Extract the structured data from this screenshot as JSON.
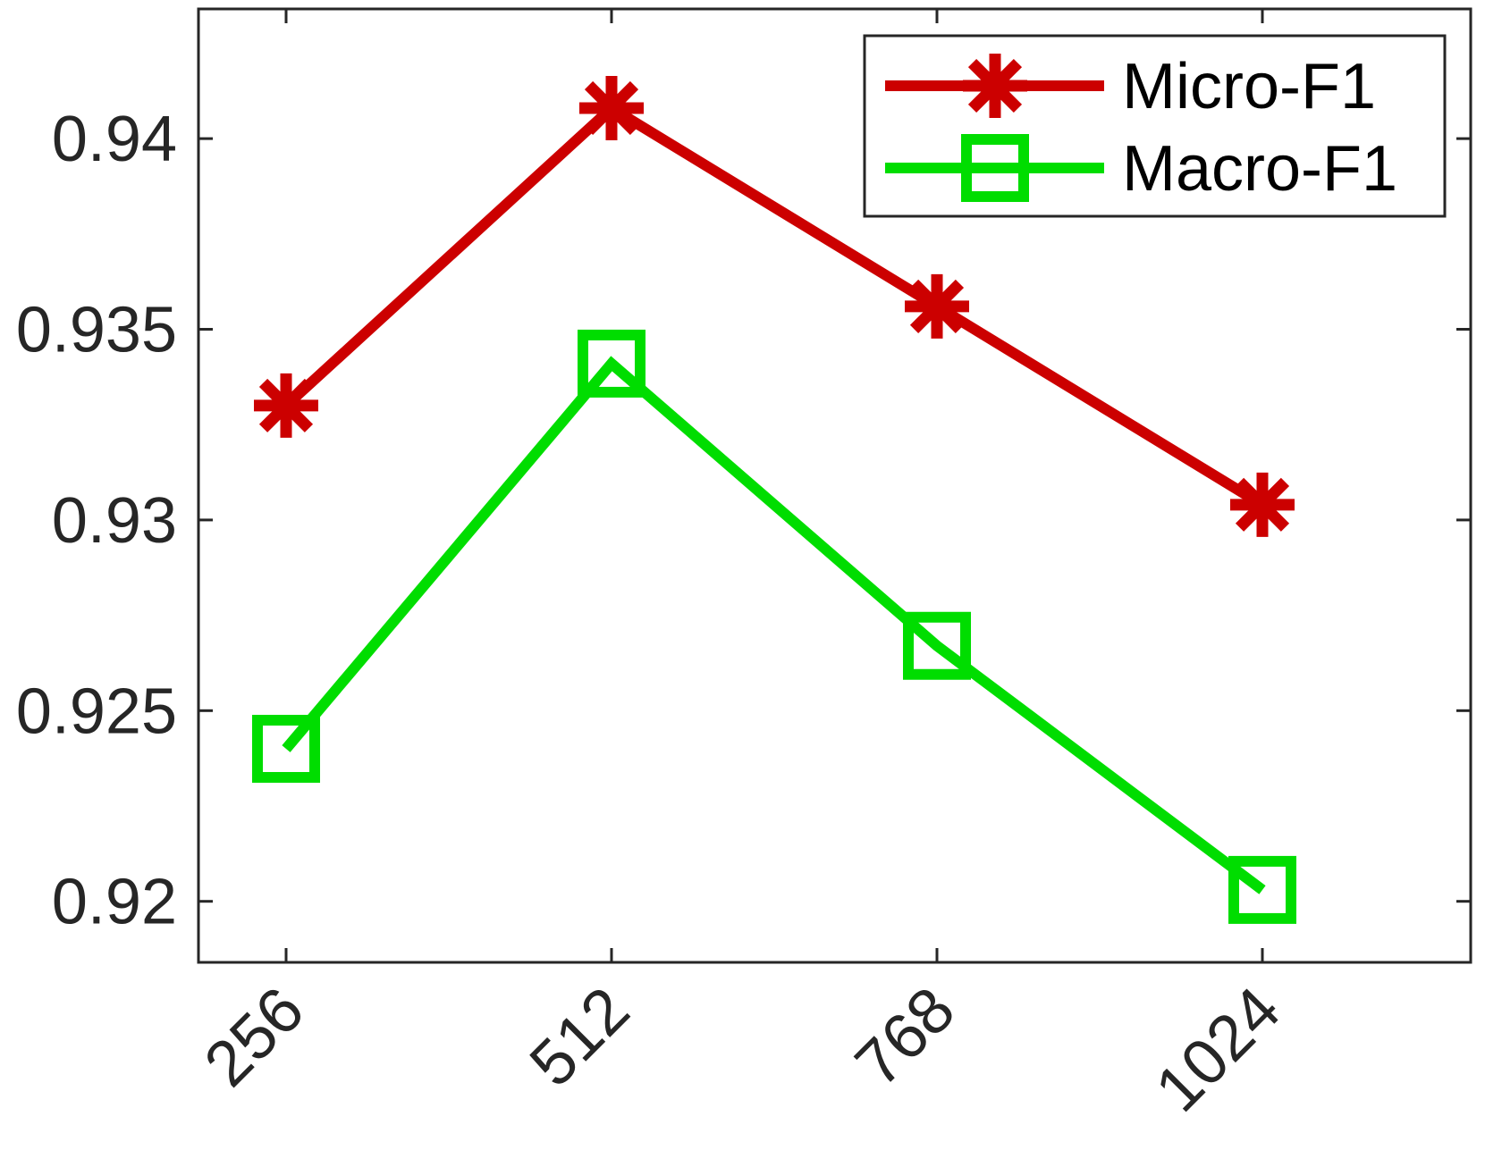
{
  "chart_data": {
    "type": "line",
    "categories": [
      "256",
      "512",
      "768",
      "1024"
    ],
    "series": [
      {
        "name": "Micro-F1",
        "values": [
          0.933,
          0.9408,
          0.9356,
          0.9304
        ],
        "color": "#cc0000",
        "marker": "asterisk"
      },
      {
        "name": "Macro-F1",
        "values": [
          0.924,
          0.9341,
          0.9267,
          0.9203
        ],
        "color": "#00dd00",
        "marker": "square"
      }
    ],
    "title": "",
    "xlabel": "",
    "ylabel": "",
    "ylim": [
      0.9184,
      0.9434
    ],
    "yticks": [
      "0.92",
      "0.925",
      "0.93",
      "0.935",
      "0.94"
    ],
    "ytick_values": [
      0.92,
      0.925,
      0.93,
      0.935,
      0.94
    ],
    "x_tick_rotation": "45 degrees",
    "grid": false,
    "legend_position": "top-right"
  }
}
